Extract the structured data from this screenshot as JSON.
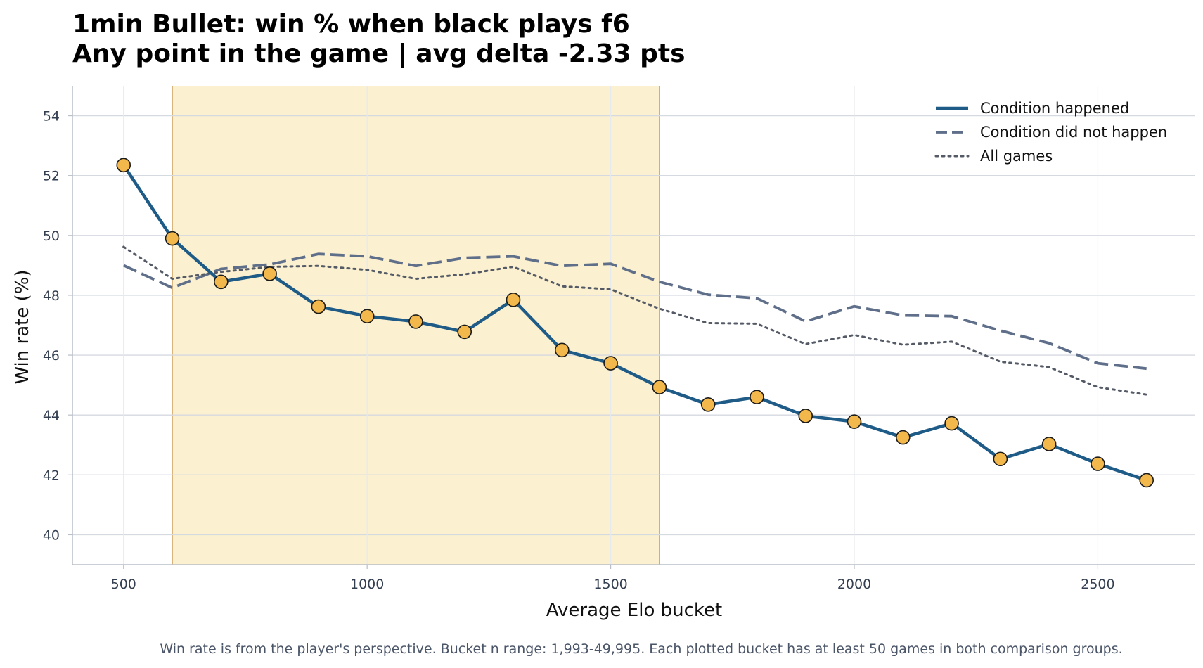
{
  "chart_data": {
    "type": "line",
    "title": "1min Bullet: win % when black plays f6",
    "subtitle": "Any point in the game | avg delta -2.33 pts",
    "xlabel": "Average Elo bucket",
    "ylabel": "Win rate (%)",
    "xlim": [
      395,
      2700
    ],
    "ylim": [
      39,
      55
    ],
    "xticks": [
      500,
      1000,
      1500,
      2000,
      2500
    ],
    "yticks": [
      40,
      42,
      44,
      46,
      48,
      50,
      52,
      54
    ],
    "grid": true,
    "legend_position": "top-right",
    "highlight_band": {
      "x0": 600,
      "x1": 1600,
      "color": "#fbf0cf",
      "edge_color": "#d4a86a"
    },
    "x": [
      500,
      600,
      700,
      800,
      900,
      1000,
      1100,
      1200,
      1300,
      1400,
      1500,
      1600,
      1700,
      1800,
      1900,
      2000,
      2100,
      2200,
      2300,
      2400,
      2500,
      2600
    ],
    "series": [
      {
        "name": "Condition happened",
        "style": "solid",
        "color": "#1f5b87",
        "marker_color": "#f2b84b",
        "values": [
          52.35,
          49.9,
          48.45,
          48.72,
          47.62,
          47.3,
          47.12,
          46.78,
          47.85,
          46.17,
          45.73,
          44.93,
          44.35,
          44.6,
          43.97,
          43.78,
          43.25,
          43.72,
          42.53,
          43.03,
          42.37,
          41.82
        ]
      },
      {
        "name": "Condition did not happen",
        "style": "dashed",
        "color": "#5f6f8a",
        "values": [
          49.0,
          48.25,
          48.88,
          49.03,
          49.38,
          49.3,
          48.98,
          49.25,
          49.3,
          48.98,
          49.05,
          48.45,
          48.02,
          47.9,
          47.13,
          47.63,
          47.33,
          47.3,
          46.82,
          46.4,
          45.73,
          45.55
        ]
      },
      {
        "name": "All games",
        "style": "dotted",
        "color": "#555b66",
        "values": [
          49.62,
          48.55,
          48.78,
          48.95,
          48.98,
          48.85,
          48.55,
          48.7,
          48.95,
          48.3,
          48.2,
          47.55,
          47.07,
          47.05,
          46.37,
          46.67,
          46.35,
          46.45,
          45.78,
          45.6,
          44.93,
          44.68
        ]
      }
    ],
    "footnote": "Win rate is from the player's perspective. Bucket n range: 1,993-49,995. Each plotted bucket has at least 50 games in both comparison groups."
  }
}
